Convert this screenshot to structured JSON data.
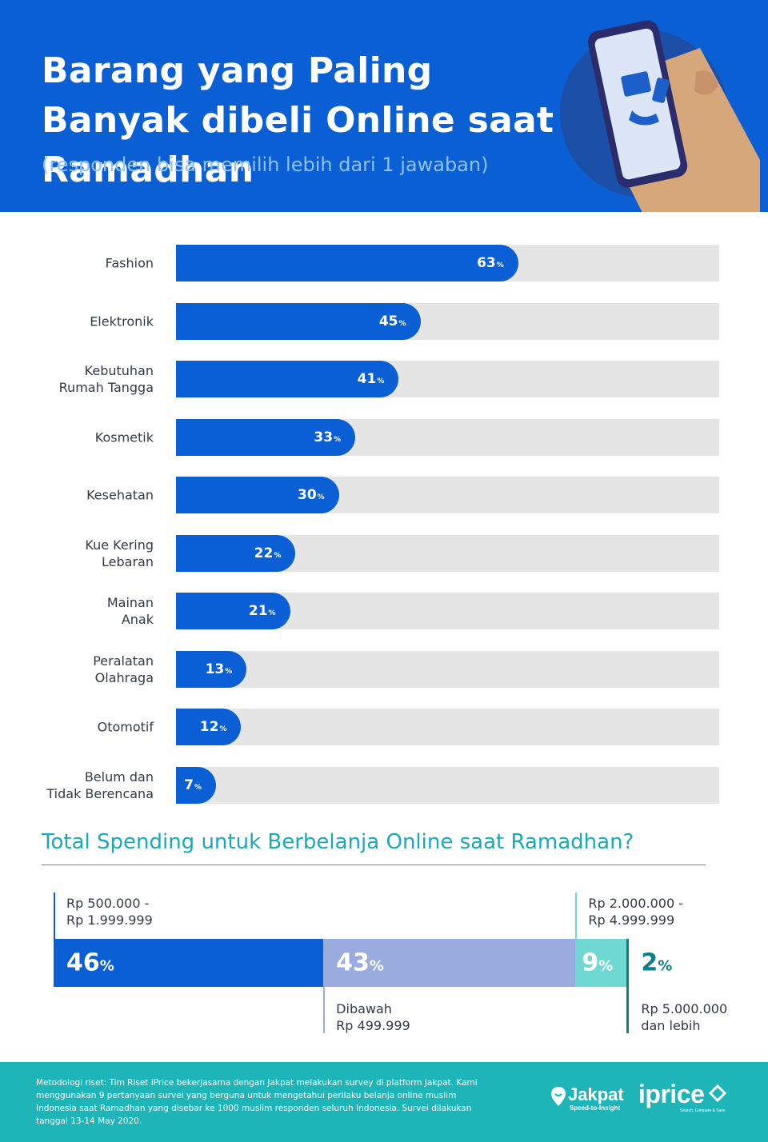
{
  "header": {
    "title": "Barang yang Paling Banyak dibeli Online saat Ramadhan",
    "subtitle": "(responden bisa memilih lebih dari 1 jawaban)"
  },
  "colors": {
    "primary_blue": "#0b5fd4",
    "lavender": "#9aabde",
    "light_teal": "#6fd8d2",
    "dark_teal": "#0e7f86",
    "footer_teal": "#1db5b8",
    "track_gray": "#e5e5e5"
  },
  "chart_data": [
    {
      "type": "bar",
      "orientation": "horizontal",
      "title": "Barang yang Paling Banyak dibeli Online saat Ramadhan",
      "categories": [
        "Fashion",
        "Elektronik",
        "Kebutuhan\nRumah Tangga",
        "Kosmetik",
        "Kesehatan",
        "Kue Kering\nLebaran",
        "Mainan\nAnak",
        "Peralatan\nOlahraga",
        "Otomotif",
        "Belum dan\nTidak Berencana"
      ],
      "values": [
        63,
        45,
        41,
        33,
        30,
        22,
        21,
        13,
        12,
        7
      ],
      "unit": "%",
      "xlim": [
        0,
        100
      ]
    },
    {
      "type": "bar",
      "orientation": "stacked-horizontal",
      "title": "Total Spending untuk Berbelanja Online saat Ramadhan?",
      "categories": [
        "Rp 500.000 -\nRp 1.999.999",
        "Dibawah\nRp 499.999",
        "Rp 2.000.000 -\nRp 4.999.999",
        "Rp 5.000.000\ndan lebih"
      ],
      "values": [
        46,
        43,
        9,
        2
      ],
      "unit": "%"
    }
  ],
  "spending": {
    "title": "Total Spending untuk Berbelanja Online saat Ramadhan?"
  },
  "footer": {
    "methodology": "Metodologi riset: Tim Riset iPrice bekerjasama dengan Jakpat melakukan survey di platform Jakpat. Kami menggunakan 9 pertanyaan survei yang berguna untuk mengetahui perilaku belanja online muslim Indonesia saat Ramadhan yang disebar ke 1000 muslim responden seluruh Indonesia. Survei dilakukan tanggal 13-14 May 2020.",
    "jakpat_name": "Jakpat",
    "jakpat_tagline": "Speed-to-Insight",
    "iprice_name": "iprice",
    "iprice_tagline": "Search, Compare & Save"
  }
}
